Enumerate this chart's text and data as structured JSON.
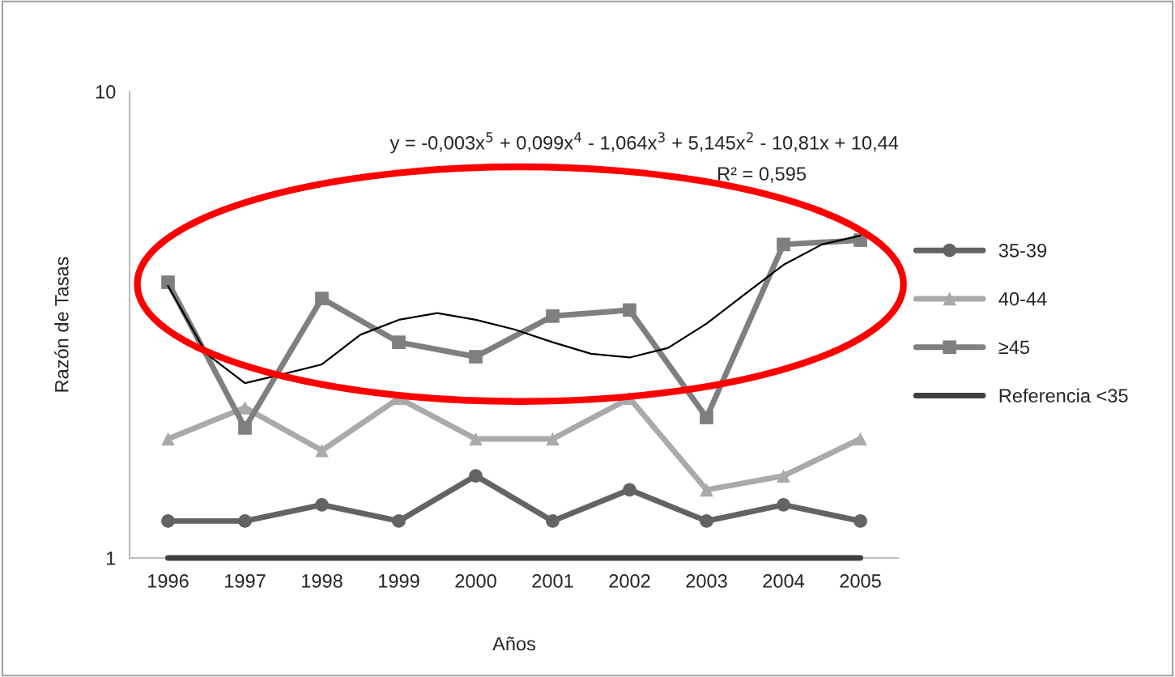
{
  "chart_data": {
    "type": "line",
    "xlabel": "Años",
    "ylabel": "Razón de Tasas",
    "x": [
      1996,
      1997,
      1998,
      1999,
      2000,
      2001,
      2002,
      2003,
      2004,
      2005
    ],
    "xlim": [
      1995.5,
      2005.5
    ],
    "xticks": [
      1996,
      1997,
      1998,
      1999,
      2000,
      2001,
      2002,
      2003,
      2004,
      2005
    ],
    "log": true,
    "ylim": [
      1,
      10
    ],
    "yticks": [
      1,
      10
    ],
    "grid": false,
    "legend": "right",
    "series": [
      {
        "name": "35-39",
        "color": "#636363",
        "marker": "circle",
        "values": [
          1.2,
          1.2,
          1.3,
          1.2,
          1.5,
          1.2,
          1.4,
          1.2,
          1.3,
          1.2
        ]
      },
      {
        "name": "40-44",
        "color": "#aaaaaa",
        "marker": "triangle",
        "values": [
          1.8,
          2.1,
          1.7,
          2.2,
          1.8,
          1.8,
          2.2,
          1.4,
          1.5,
          1.8
        ]
      },
      {
        "name": "≥45",
        "color": "#7f7f7f",
        "marker": "square",
        "values": [
          3.9,
          1.9,
          3.6,
          2.9,
          2.7,
          3.3,
          3.4,
          2.0,
          4.7,
          4.8
        ]
      },
      {
        "name": "Referencia <35",
        "color": "#404040",
        "marker": "none",
        "values": [
          1,
          1,
          1,
          1,
          1,
          1,
          1,
          1,
          1,
          1
        ]
      },
      {
        "type": "line",
        "color": "#000000",
        "marker": "none",
        "x": [
          1996,
          1996.5,
          1997,
          1997.5,
          1998,
          1998.5,
          1999,
          1999.5,
          2000,
          2000.5,
          2001,
          2001.5,
          2002,
          2002.5,
          2003,
          2003.5,
          2004,
          2004.5,
          2005
        ],
        "values": [
          3.83,
          2.74,
          2.37,
          2.48,
          2.6,
          3.01,
          3.24,
          3.35,
          3.24,
          3.09,
          2.9,
          2.74,
          2.69,
          2.82,
          3.18,
          3.68,
          4.25,
          4.7,
          4.91
        ]
      }
    ],
    "annotations": [
      "y = -0,003x$^{5}$ + 0,099x$^{4}$ - 1,064x$^{3}$ + 5,145x$^{2}$ - 10,81x + 10,44",
      "R² = 0,595"
    ]
  }
}
